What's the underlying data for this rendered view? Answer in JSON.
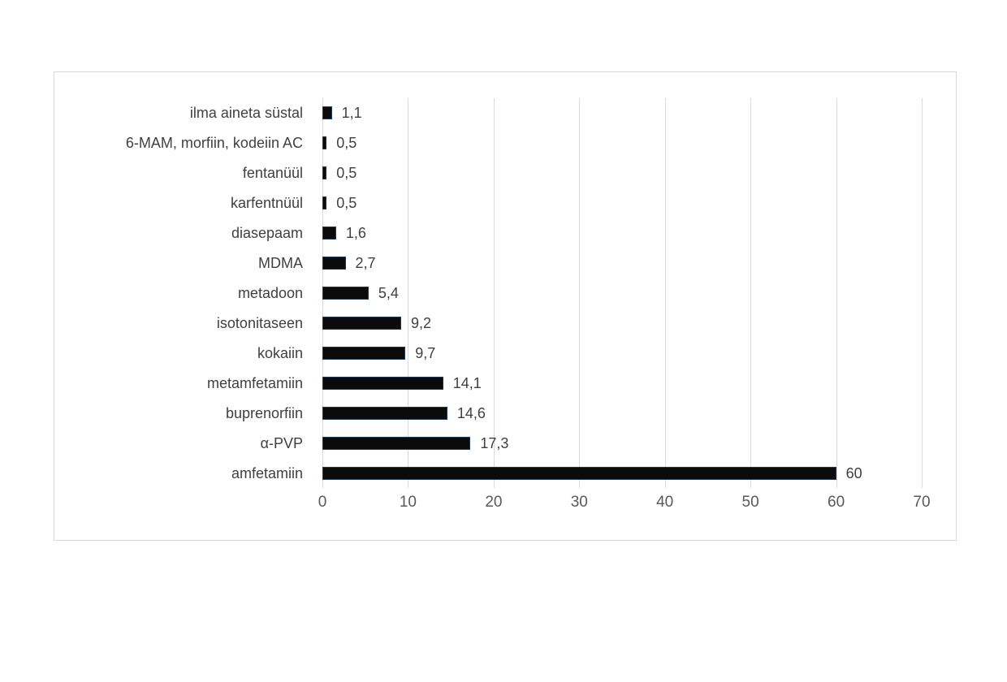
{
  "chart_data": {
    "type": "bar",
    "orientation": "horizontal",
    "title": "",
    "xlabel": "",
    "ylabel": "",
    "categories": [
      "ilma aineta süstal",
      "6-MAM, morfiin, kodeiin AC",
      "fentanüül",
      "karfentnüül",
      "diasepaam",
      "MDMA",
      "metadoon",
      "isotonitaseen",
      "kokaiin",
      "metamfetamiin",
      "buprenorfiin",
      "α-PVP",
      "amfetamiin"
    ],
    "values": [
      1.1,
      0.5,
      0.5,
      0.5,
      1.6,
      2.7,
      5.4,
      9.2,
      9.7,
      14.1,
      14.6,
      17.3,
      60
    ],
    "value_labels": [
      "1,1",
      "0,5",
      "0,5",
      "0,5",
      "1,6",
      "2,7",
      "5,4",
      "9,2",
      "9,7",
      "14,1",
      "14,6",
      "17,3",
      "60"
    ],
    "xlim": [
      0,
      70
    ],
    "x_ticks": [
      0,
      10,
      20,
      30,
      40,
      50,
      60,
      70
    ],
    "x_tick_labels": [
      "0",
      "10",
      "20",
      "30",
      "40",
      "50",
      "60",
      "70"
    ],
    "grid": "vertical-gridlines-on",
    "legend": "none",
    "colors": {
      "bar_fill": "#0b0b0b",
      "bar_border": "#1d3a57",
      "gridline": "#d9d9d9",
      "category_text": "#404040",
      "value_text": "#404040",
      "tick_text": "#595959",
      "chart_border": "#d7d7d7",
      "background": "#ffffff"
    }
  }
}
